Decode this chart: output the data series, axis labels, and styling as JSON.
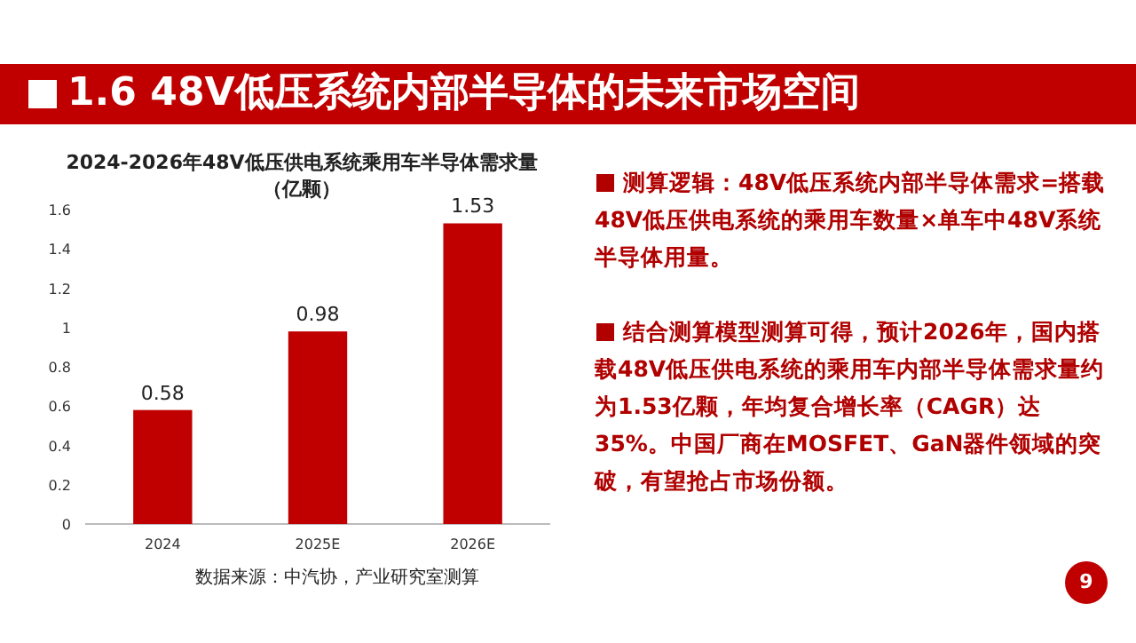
{
  "chart_data": {
    "type": "bar",
    "title": "2024-2026年48V低压供电系统乘用车半导体需求量（亿颗）",
    "categories": [
      "2024",
      "2025E",
      "2026E"
    ],
    "values": [
      0.58,
      0.98,
      1.53
    ],
    "color": "#c00000",
    "ylim": [
      0,
      1.6
    ],
    "yticks": [
      0,
      0.2,
      0.4,
      0.6,
      0.8,
      1,
      1.2,
      1.4,
      1.6
    ],
    "data_labels": true,
    "annotations": [
      "1.6 48V低压系统内部半导体的未来市场空间",
      "测算逻辑：48V低压系统内部半导体需求=搭载48V低压供电系统的乘用车数量×单车中48V系统半导体用量。",
      "结合测算模型测算可得，预计2026年，国内搭载48V低压供电系统的乘用车内部半导体需求量约为1.53亿颗，年均复合增长率（CAGR）达35%。中国厂商在MOSFET、GaN器件领域的突破，有望抢占市场份额。",
      "数据来源：中汽协，产业研究室测算",
      "9"
    ]
  }
}
